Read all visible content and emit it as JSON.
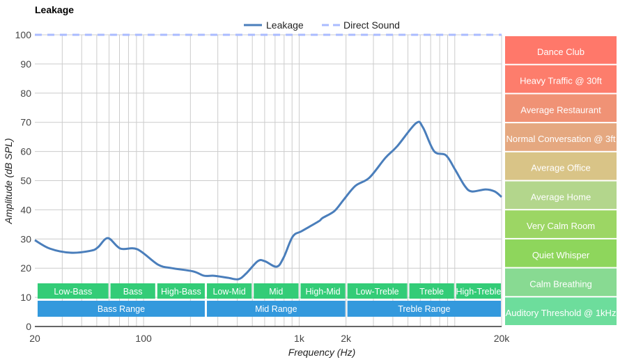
{
  "chart_data": {
    "type": "line",
    "title": "Leakage",
    "xlabel": "Frequency (Hz)",
    "ylabel": "Amplitude (dB SPL)",
    "xscale": "log",
    "xlim": [
      20,
      20000
    ],
    "ylim": [
      0,
      100
    ],
    "grid": true,
    "legend_placement": "top-center",
    "x_tick_labels": [
      {
        "v": 20,
        "label": "20"
      },
      {
        "v": 100,
        "label": "100"
      },
      {
        "v": 1000,
        "label": "1k"
      },
      {
        "v": 2000,
        "label": "2k"
      },
      {
        "v": 20000,
        "label": "20k"
      }
    ],
    "y_ticks": [
      0,
      10,
      20,
      30,
      40,
      50,
      60,
      70,
      80,
      90,
      100
    ],
    "x_gridlines": [
      30,
      40,
      50,
      60,
      70,
      80,
      90,
      100,
      200,
      300,
      400,
      500,
      600,
      700,
      800,
      900,
      1000,
      2000,
      3000,
      4000,
      5000,
      6000,
      7000,
      8000,
      9000,
      10000,
      20000
    ],
    "series": [
      {
        "name": "Leakage",
        "color": "#4a7ebb",
        "style": "solid",
        "points": [
          [
            20,
            29.6
          ],
          [
            25,
            26.7
          ],
          [
            34,
            25.3
          ],
          [
            46,
            26
          ],
          [
            51,
            27.2
          ],
          [
            59,
            30.3
          ],
          [
            71,
            26.7
          ],
          [
            91,
            26.5
          ],
          [
            124,
            21.2
          ],
          [
            152,
            20
          ],
          [
            208,
            18.9
          ],
          [
            245,
            17.4
          ],
          [
            283,
            17.4
          ],
          [
            348,
            16.7
          ],
          [
            406,
            16.2
          ],
          [
            455,
            18.1
          ],
          [
            542,
            22.4
          ],
          [
            601,
            22.4
          ],
          [
            716,
            20.5
          ],
          [
            794,
            23.6
          ],
          [
            908,
            30.8
          ],
          [
            1038,
            32.7
          ],
          [
            1330,
            36
          ],
          [
            1414,
            37.2
          ],
          [
            1686,
            39.6
          ],
          [
            1928,
            43.4
          ],
          [
            2297,
            48.2
          ],
          [
            2825,
            51
          ],
          [
            3580,
            57.8
          ],
          [
            4266,
            61.8
          ],
          [
            5636,
            69.7
          ],
          [
            6236,
            68.3
          ],
          [
            7364,
            60.1
          ],
          [
            8770,
            58.7
          ],
          [
            10023,
            53.9
          ],
          [
            11590,
            48.2
          ],
          [
            12850,
            46.3
          ],
          [
            15780,
            47
          ],
          [
            18060,
            46.3
          ],
          [
            20000,
            44.4
          ]
        ]
      },
      {
        "name": "Direct Sound",
        "color": "#aabbff",
        "style": "dashed",
        "points": [
          [
            20,
            100
          ],
          [
            20000,
            100
          ]
        ]
      }
    ],
    "bands": [
      {
        "label": "Low-Bass",
        "from": 20,
        "to": 60
      },
      {
        "label": "Bass",
        "from": 60,
        "to": 120
      },
      {
        "label": "High-Bass",
        "from": 120,
        "to": 250
      },
      {
        "label": "Low-Mid",
        "from": 250,
        "to": 500
      },
      {
        "label": "Mid",
        "from": 500,
        "to": 1000
      },
      {
        "label": "High-Mid",
        "from": 1000,
        "to": 2000
      },
      {
        "label": "Low-Treble",
        "from": 2000,
        "to": 5000
      },
      {
        "label": "Treble",
        "from": 5000,
        "to": 10000
      },
      {
        "label": "High-Treble",
        "from": 10000,
        "to": 20000
      }
    ],
    "ranges": [
      {
        "label": "Bass Range",
        "from": 20,
        "to": 250
      },
      {
        "label": "Mid Range",
        "from": 250,
        "to": 2000
      },
      {
        "label": "Treble Range",
        "from": 2000,
        "to": 20000
      }
    ],
    "band_color": "#33cc77",
    "range_color": "#3399dd",
    "reference_levels": [
      {
        "label": "Dance Club",
        "color": "#ff786a"
      },
      {
        "label": "Heavy Traffic @ 30ft",
        "color": "#fd7d6c"
      },
      {
        "label": "Average Restaurant",
        "color": "#f09275"
      },
      {
        "label": "Normal Conversation @ 3ft",
        "color": "#e5a880"
      },
      {
        "label": "Average Office",
        "color": "#d9c487"
      },
      {
        "label": "Average Home",
        "color": "#b3d68c"
      },
      {
        "label": "Very Calm Room",
        "color": "#9cd664"
      },
      {
        "label": "Quiet Whisper",
        "color": "#8ed65c"
      },
      {
        "label": "Calm Breathing",
        "color": "#88da92"
      },
      {
        "label": "Auditory Threshold @ 1kHz",
        "color": "#6ddd9c"
      }
    ]
  }
}
